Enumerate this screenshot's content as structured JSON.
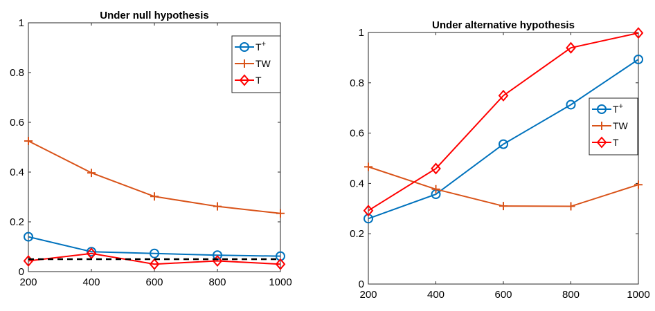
{
  "chart_data": [
    {
      "type": "line",
      "title": "Under null hypothesis",
      "xlabel": "",
      "ylabel": "",
      "x": [
        200,
        400,
        600,
        800,
        1000
      ],
      "xticks": [
        "200",
        "400",
        "600",
        "800",
        "1000"
      ],
      "yticks": [
        "0",
        "0.2",
        "0.4",
        "0.6",
        "0.8",
        "1"
      ],
      "xlim": [
        200,
        1000
      ],
      "ylim": [
        0,
        1
      ],
      "grid": false,
      "legend_position": "top-right",
      "series": [
        {
          "name": "T",
          "legend_sup": "+",
          "color": "#0072BD",
          "marker": "circle",
          "values": [
            0.14,
            0.08,
            0.073,
            0.066,
            0.062
          ]
        },
        {
          "name": "TW",
          "legend_sup": "",
          "color": "#D95319",
          "marker": "plus",
          "values": [
            0.525,
            0.397,
            0.302,
            0.262,
            0.234
          ]
        },
        {
          "name": "T",
          "legend_sup": "",
          "color": "#FF0000",
          "marker": "diamond",
          "values": [
            0.043,
            0.073,
            0.03,
            0.043,
            0.03
          ]
        }
      ],
      "reference_line": {
        "value": 0.05,
        "color": "#000000",
        "style": "dashed"
      }
    },
    {
      "type": "line",
      "title": "Under alternative hypothesis",
      "xlabel": "",
      "ylabel": "",
      "x": [
        200,
        400,
        600,
        800,
        1000
      ],
      "xticks": [
        "200",
        "400",
        "600",
        "800",
        "1000"
      ],
      "yticks": [
        "0",
        "0.2",
        "0.4",
        "0.6",
        "0.8",
        "1"
      ],
      "xlim": [
        200,
        1000
      ],
      "ylim": [
        0,
        1
      ],
      "grid": false,
      "legend_position": "middle-right",
      "series": [
        {
          "name": "T",
          "legend_sup": "+",
          "color": "#0072BD",
          "marker": "circle",
          "values": [
            0.26,
            0.357,
            0.556,
            0.713,
            0.893
          ]
        },
        {
          "name": "TW",
          "legend_sup": "",
          "color": "#D95319",
          "marker": "plus",
          "values": [
            0.466,
            0.377,
            0.31,
            0.309,
            0.395
          ]
        },
        {
          "name": "T",
          "legend_sup": "",
          "color": "#FF0000",
          "marker": "diamond",
          "values": [
            0.292,
            0.459,
            0.749,
            0.939,
            0.998
          ]
        }
      ]
    }
  ]
}
